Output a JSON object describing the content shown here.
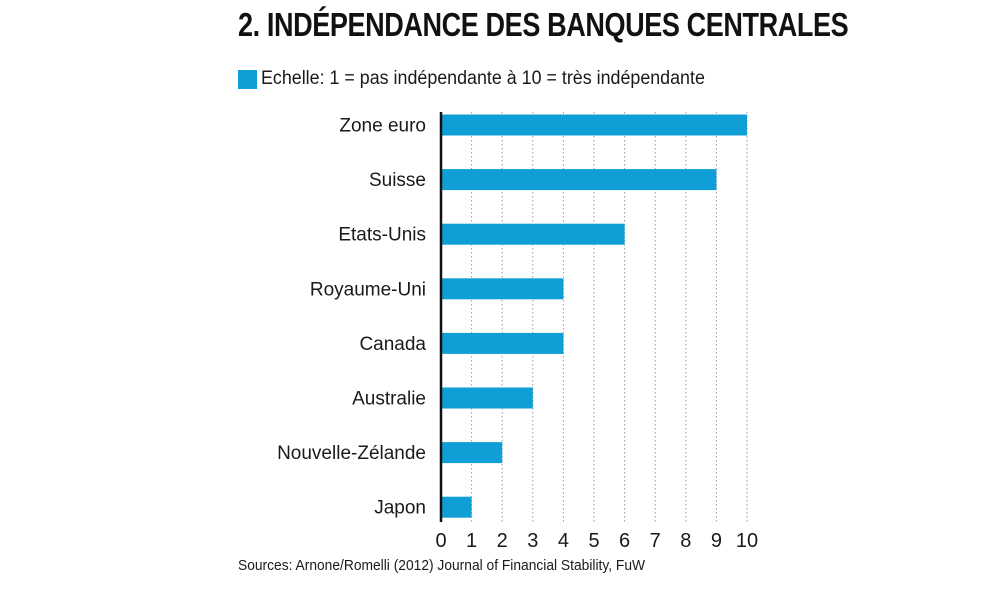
{
  "title": "2. INDÉPENDANCE DES BANQUES CENTRALES",
  "source": "Sources: Arnone/Romelli (2012) Journal of Financial Stability, FuW",
  "colors": {
    "bar": "#0f9ed5",
    "grid": "#9a9a9a",
    "axis": "#111111"
  },
  "chart_data": {
    "type": "bar",
    "orientation": "horizontal",
    "categories": [
      "Zone euro",
      "Suisse",
      "Etats-Unis",
      "Royaume-Uni",
      "Canada",
      "Australie",
      "Nouvelle-Zélande",
      "Japon"
    ],
    "series": [
      {
        "name": "Echelle: 1 = pas indépendante à 10 = très indépendante",
        "values": [
          10,
          9,
          6,
          4,
          4,
          3,
          2,
          1
        ]
      }
    ],
    "xlim": [
      0,
      10
    ],
    "xticks": [
      "0",
      "1",
      "2",
      "3",
      "4",
      "5",
      "6",
      "7",
      "8",
      "9",
      "10"
    ],
    "grid": "vertical dotted",
    "legend_position": "top-left"
  }
}
